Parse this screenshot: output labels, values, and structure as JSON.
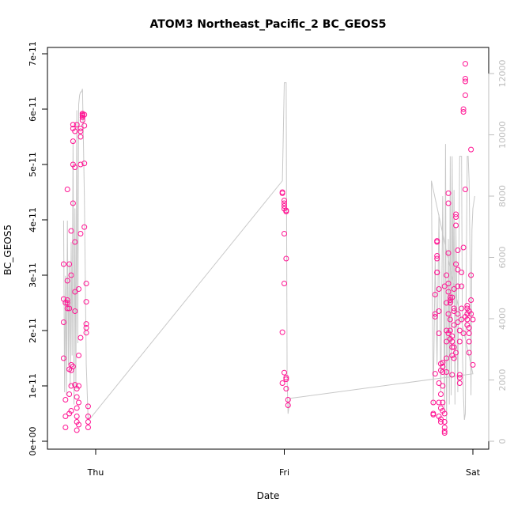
{
  "chart_data": {
    "type": "scatter",
    "title": "ATOM3 Northeast_Pacific_2 BC_GEOS5",
    "xlabel": "Date",
    "ylabel": "BC_GEOS5",
    "x_ticks": [
      "Thu",
      "Fri",
      "Sat"
    ],
    "y_ticks": [
      "0e+00",
      "1e-11",
      "2e-11",
      "3e-11",
      "4e-11",
      "5e-11",
      "6e-11",
      "7e-11"
    ],
    "y2_ticks": [
      "0",
      "2000",
      "4000",
      "6000",
      "8000",
      "10000",
      "12000"
    ],
    "ylim": [
      0,
      7e-11
    ],
    "y2lim": [
      0,
      12000
    ],
    "xlim_days": [
      -0.2,
      2.05
    ],
    "colors": {
      "points": "#ff1493",
      "altitude": "#c8c8c8",
      "axis": "#000000",
      "right_axis": "#bdbdbd"
    },
    "series": [
      {
        "type": "scatter",
        "points": [
          [
            -0.17,
            2.57e-11
          ],
          [
            -0.17,
            2.15e-11
          ],
          [
            -0.17,
            1.5e-11
          ],
          [
            -0.17,
            3.2e-11
          ],
          [
            -0.16,
            7.5e-12
          ],
          [
            -0.16,
            4.5e-12
          ],
          [
            -0.16,
            2.5e-11
          ],
          [
            -0.15,
            4.55e-11
          ],
          [
            -0.15,
            2.9e-11
          ],
          [
            -0.15,
            2.4e-11
          ],
          [
            -0.15,
            2.55e-11
          ],
          [
            -0.15,
            2.5e-11
          ],
          [
            -0.14,
            2.4e-11
          ],
          [
            -0.14,
            3.2e-11
          ],
          [
            -0.14,
            1.3e-11
          ],
          [
            -0.14,
            8.5e-12
          ],
          [
            -0.14,
            5e-12
          ],
          [
            -0.13,
            1e-11
          ],
          [
            -0.13,
            1.38e-11
          ],
          [
            -0.13,
            1.28e-11
          ],
          [
            -0.13,
            3e-11
          ],
          [
            -0.13,
            3.8e-11
          ],
          [
            -0.12,
            4.3e-11
          ],
          [
            -0.12,
            5e-11
          ],
          [
            -0.12,
            5.42e-11
          ],
          [
            -0.12,
            5.72e-11
          ],
          [
            -0.12,
            5.65e-11
          ],
          [
            -0.11,
            5.6e-11
          ],
          [
            -0.11,
            4.95e-11
          ],
          [
            -0.11,
            3.6e-11
          ],
          [
            -0.11,
            2.7e-11
          ],
          [
            -0.11,
            2.35e-11
          ],
          [
            -0.11,
            1.02e-11
          ],
          [
            -0.1,
            8e-12
          ],
          [
            -0.1,
            6e-12
          ],
          [
            -0.1,
            4.5e-12
          ],
          [
            -0.1,
            3.5e-12
          ],
          [
            -0.1,
            5.72e-11
          ],
          [
            -0.1,
            9.5e-12
          ],
          [
            -0.09,
            7e-12
          ],
          [
            -0.09,
            1e-11
          ],
          [
            -0.09,
            1.55e-11
          ],
          [
            -0.09,
            2.75e-11
          ],
          [
            -0.08,
            3.75e-11
          ],
          [
            -0.08,
            5e-11
          ],
          [
            -0.08,
            5.5e-11
          ],
          [
            -0.08,
            5.6e-11
          ],
          [
            -0.08,
            5.65e-11
          ],
          [
            -0.07,
            5.85e-11
          ],
          [
            -0.07,
            5.9e-11
          ],
          [
            -0.07,
            5.8e-11
          ],
          [
            -0.07,
            5.88e-11
          ],
          [
            -0.07,
            5.92e-11
          ],
          [
            -0.06,
            5.9e-11
          ],
          [
            -0.06,
            5.7e-11
          ],
          [
            -0.06,
            5.02e-11
          ],
          [
            -0.06,
            3.87e-11
          ],
          [
            -0.05,
            2.85e-11
          ],
          [
            -0.05,
            2.52e-11
          ],
          [
            -0.05,
            2.12e-11
          ],
          [
            -0.05,
            2.05e-11
          ],
          [
            -0.05,
            1.96e-11
          ],
          [
            -0.04,
            6.3e-12
          ],
          [
            -0.04,
            4.5e-12
          ],
          [
            -0.04,
            3.5e-12
          ],
          [
            -0.04,
            2.5e-12
          ],
          [
            -0.1,
            2e-12
          ],
          [
            -0.16,
            2.5e-12
          ],
          [
            -0.09,
            3e-12
          ],
          [
            -0.08,
            1.87e-11
          ],
          [
            -0.12,
            1.35e-11
          ],
          [
            -0.13,
            5.5e-12
          ],
          [
            0.99,
            4.5e-11
          ],
          [
            0.99,
            4.48e-11
          ],
          [
            1.0,
            4.35e-11
          ],
          [
            1.0,
            4.3e-11
          ],
          [
            1.0,
            4.25e-11
          ],
          [
            1.0,
            4.2e-11
          ],
          [
            1.01,
            4.17e-11
          ],
          [
            1.01,
            4.15e-11
          ],
          [
            1.0,
            3.75e-11
          ],
          [
            1.01,
            3.3e-11
          ],
          [
            1.0,
            2.85e-11
          ],
          [
            0.99,
            1.97e-11
          ],
          [
            1.0,
            1.24e-11
          ],
          [
            1.01,
            1.15e-11
          ],
          [
            1.01,
            1.12e-11
          ],
          [
            0.99,
            1.05e-11
          ],
          [
            1.01,
            9.5e-12
          ],
          [
            1.02,
            7.5e-12
          ],
          [
            1.02,
            6.5e-12
          ],
          [
            1.79,
            5e-12
          ],
          [
            1.79,
            4.8e-12
          ],
          [
            1.79,
            7e-12
          ],
          [
            1.8,
            1.22e-11
          ],
          [
            1.8,
            2.25e-11
          ],
          [
            1.8,
            2.3e-11
          ],
          [
            1.8,
            2.65e-11
          ],
          [
            1.81,
            3.35e-11
          ],
          [
            1.81,
            3.6e-11
          ],
          [
            1.81,
            3.62e-11
          ],
          [
            1.81,
            3.3e-11
          ],
          [
            1.81,
            3.05e-11
          ],
          [
            1.82,
            2.75e-11
          ],
          [
            1.82,
            2.35e-11
          ],
          [
            1.82,
            1.95e-11
          ],
          [
            1.82,
            1.05e-11
          ],
          [
            1.82,
            7e-12
          ],
          [
            1.83,
            4e-12
          ],
          [
            1.83,
            3.5e-12
          ],
          [
            1.83,
            6e-12
          ],
          [
            1.83,
            1.28e-11
          ],
          [
            1.83,
            1.4e-11
          ],
          [
            1.84,
            1.42e-11
          ],
          [
            1.84,
            1.35e-11
          ],
          [
            1.84,
            1.25e-11
          ],
          [
            1.84,
            1e-11
          ],
          [
            1.84,
            7e-12
          ],
          [
            1.85,
            5e-12
          ],
          [
            1.85,
            3.5e-12
          ],
          [
            1.85,
            2.5e-12
          ],
          [
            1.85,
            1.8e-12
          ],
          [
            1.85,
            1.5e-12
          ],
          [
            1.85,
            2.8e-11
          ],
          [
            1.86,
            3e-11
          ],
          [
            1.86,
            2.5e-11
          ],
          [
            1.86,
            2e-11
          ],
          [
            1.86,
            1.8e-11
          ],
          [
            1.86,
            1.5e-11
          ],
          [
            1.87,
            2.3e-11
          ],
          [
            1.87,
            2.7e-11
          ],
          [
            1.87,
            2.85e-11
          ],
          [
            1.87,
            3.4e-11
          ],
          [
            1.87,
            4.48e-11
          ],
          [
            1.87,
            4.3e-11
          ],
          [
            1.88,
            2.6e-11
          ],
          [
            1.88,
            2.5e-11
          ],
          [
            1.88,
            2.55e-11
          ],
          [
            1.88,
            2.2e-11
          ],
          [
            1.88,
            2e-11
          ],
          [
            1.89,
            1.9e-11
          ],
          [
            1.89,
            1.8e-11
          ],
          [
            1.89,
            1.7e-11
          ],
          [
            1.89,
            1.55e-11
          ],
          [
            1.89,
            1.2e-11
          ],
          [
            1.9,
            1.5e-11
          ],
          [
            1.9,
            1.7e-11
          ],
          [
            1.9,
            2.1e-11
          ],
          [
            1.9,
            2.4e-11
          ],
          [
            1.9,
            2.75e-11
          ],
          [
            1.91,
            3.9e-11
          ],
          [
            1.91,
            4.05e-11
          ],
          [
            1.91,
            4.1e-11
          ],
          [
            1.91,
            3.2e-11
          ],
          [
            1.92,
            3.45e-11
          ],
          [
            1.92,
            3.1e-11
          ],
          [
            1.92,
            2.8e-11
          ],
          [
            1.92,
            2.3e-11
          ],
          [
            1.92,
            2.15e-11
          ],
          [
            1.93,
            1.8e-11
          ],
          [
            1.93,
            1.2e-11
          ],
          [
            1.93,
            1.15e-11
          ],
          [
            1.93,
            1.05e-11
          ],
          [
            1.94,
            2.2e-11
          ],
          [
            1.94,
            2.4e-11
          ],
          [
            1.94,
            2.8e-11
          ],
          [
            1.94,
            3.05e-11
          ],
          [
            1.95,
            3.5e-11
          ],
          [
            1.95,
            5.95e-11
          ],
          [
            1.95,
            6e-11
          ],
          [
            1.96,
            6.5e-11
          ],
          [
            1.96,
            6.55e-11
          ],
          [
            1.96,
            6.82e-11
          ],
          [
            1.96,
            6.25e-11
          ],
          [
            1.96,
            4.55e-11
          ],
          [
            1.97,
            2.45e-11
          ],
          [
            1.97,
            2.4e-11
          ],
          [
            1.97,
            2.3e-11
          ],
          [
            1.97,
            2.2e-11
          ],
          [
            1.97,
            2.1e-11
          ],
          [
            1.98,
            2.05e-11
          ],
          [
            1.98,
            1.95e-11
          ],
          [
            1.98,
            1.8e-11
          ],
          [
            1.98,
            1.6e-11
          ],
          [
            1.99,
            5.27e-11
          ],
          [
            1.99,
            3e-11
          ],
          [
            1.99,
            2.3e-11
          ],
          [
            2.0,
            2.2e-11
          ],
          [
            2.0,
            1.38e-11
          ],
          [
            1.99,
            2.55e-11
          ],
          [
            1.98,
            2.35e-11
          ],
          [
            1.96,
            2.25e-11
          ],
          [
            1.95,
            1.95e-11
          ],
          [
            1.93,
            2e-11
          ],
          [
            1.91,
            1.6e-11
          ],
          [
            1.9,
            2.35e-11
          ],
          [
            1.89,
            2.6e-11
          ],
          [
            1.88,
            1.85e-11
          ],
          [
            1.87,
            1.95e-11
          ],
          [
            1.86,
            1.25e-11
          ],
          [
            1.84,
            5.5e-12
          ],
          [
            1.83,
            8.5e-12
          ],
          [
            1.82,
            4.5e-12
          ],
          [
            1.81,
            3.05e-11
          ]
        ]
      },
      {
        "type": "line",
        "axis": "right",
        "points": [
          [
            -0.17,
            7200
          ],
          [
            -0.165,
            1600
          ],
          [
            -0.16,
            5400
          ],
          [
            -0.155,
            1500
          ],
          [
            -0.15,
            7200
          ],
          [
            -0.145,
            2500
          ],
          [
            -0.14,
            5800
          ],
          [
            -0.135,
            1800
          ],
          [
            -0.13,
            6500
          ],
          [
            -0.125,
            2800
          ],
          [
            -0.12,
            9800
          ],
          [
            -0.115,
            1200
          ],
          [
            -0.11,
            7600
          ],
          [
            -0.105,
            1700
          ],
          [
            -0.1,
            10800
          ],
          [
            -0.095,
            3200
          ],
          [
            -0.09,
            11000
          ],
          [
            -0.085,
            11300
          ],
          [
            -0.08,
            11400
          ],
          [
            -0.075,
            11400
          ],
          [
            -0.07,
            11500
          ],
          [
            -0.06,
            8000
          ],
          [
            -0.05,
            2500
          ],
          [
            -0.04,
            700
          ],
          [
            -0.035,
            700
          ],
          [
            0.99,
            8500
          ],
          [
            1.0,
            11700
          ],
          [
            1.01,
            11700
          ],
          [
            1.015,
            2000
          ],
          [
            1.02,
            900
          ],
          [
            1.03,
            1400
          ],
          [
            2.0,
            2200
          ],
          [
            1.78,
            8500
          ],
          [
            1.79,
            1200
          ],
          [
            1.8,
            6000
          ],
          [
            1.81,
            2500
          ],
          [
            1.82,
            7400
          ],
          [
            1.83,
            1600
          ],
          [
            1.84,
            8000
          ],
          [
            1.85,
            1000
          ],
          [
            1.855,
            9700
          ],
          [
            1.86,
            600
          ],
          [
            1.87,
            6600
          ],
          [
            1.875,
            1200
          ],
          [
            1.88,
            9300
          ],
          [
            1.885,
            1500
          ],
          [
            1.89,
            9300
          ],
          [
            1.895,
            4500
          ],
          [
            1.9,
            8200
          ],
          [
            1.905,
            1200
          ],
          [
            1.91,
            7000
          ],
          [
            1.92,
            1600
          ],
          [
            1.93,
            9300
          ],
          [
            1.94,
            9300
          ],
          [
            1.945,
            2800
          ],
          [
            1.95,
            1500
          ],
          [
            1.955,
            700
          ],
          [
            1.96,
            900
          ],
          [
            1.965,
            5500
          ],
          [
            1.97,
            9300
          ],
          [
            1.975,
            9300
          ],
          [
            1.98,
            8500
          ],
          [
            1.985,
            6000
          ],
          [
            1.99,
            1500
          ],
          [
            1.995,
            6900
          ],
          [
            2.0,
            7600
          ],
          [
            2.01,
            8000
          ]
        ]
      }
    ]
  }
}
